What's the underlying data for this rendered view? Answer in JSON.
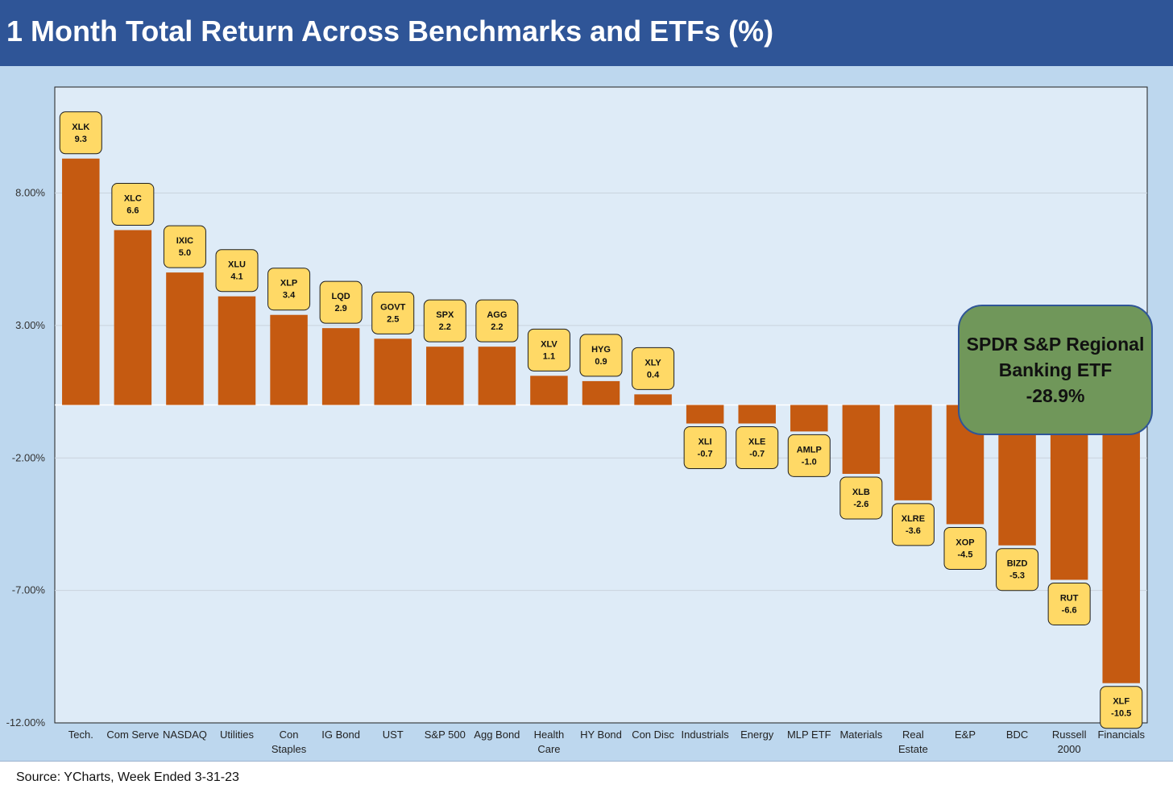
{
  "title": "1 Month Total Return Across Benchmarks and ETFs (%)",
  "source": "Source: YCharts, Week Ended 3-31-23",
  "callout": {
    "lines": [
      "SPDR S&P Regional",
      "Banking ETF",
      "-28.9%"
    ]
  },
  "colors": {
    "title_bg": "#2f5597",
    "panel_bg": "#bdd7ee",
    "plot_bg": "#deebf7",
    "bar": "#c55a11",
    "label_fill": "#ffd966",
    "callout_fill": "#70975a"
  },
  "chart_data": {
    "type": "bar",
    "ylim": [
      -12,
      12
    ],
    "yticks": [
      8,
      3,
      -2,
      -7,
      -12
    ],
    "ytick_labels": [
      "8.00%",
      "3.00%",
      "-2.00%",
      "-7.00%",
      "-12.00%"
    ],
    "grid": true,
    "categories": [
      [
        "Tech."
      ],
      [
        "Com Serve"
      ],
      [
        "NASDAQ"
      ],
      [
        "Utilities"
      ],
      [
        "Con",
        "Staples"
      ],
      [
        "IG Bond"
      ],
      [
        "UST"
      ],
      [
        "S&P 500"
      ],
      [
        "Agg Bond"
      ],
      [
        "Health",
        "Care"
      ],
      [
        "HY Bond"
      ],
      [
        "Con Disc"
      ],
      [
        "Industrials"
      ],
      [
        "Energy"
      ],
      [
        "MLP ETF"
      ],
      [
        "Materials"
      ],
      [
        "Real",
        "Estate"
      ],
      [
        "E&P"
      ],
      [
        "BDC"
      ],
      [
        "Russell",
        "2000"
      ],
      [
        "Financials"
      ]
    ],
    "tickers": [
      "XLK",
      "XLC",
      "IXIC",
      "XLU",
      "XLP",
      "LQD",
      "GOVT",
      "SPX",
      "AGG",
      "XLV",
      "HYG",
      "XLY",
      "XLI",
      "XLE",
      "AMLP",
      "XLB",
      "XLRE",
      "XOP",
      "BIZD",
      "RUT",
      "XLF"
    ],
    "values": [
      9.3,
      6.6,
      5.0,
      4.1,
      3.4,
      2.9,
      2.5,
      2.2,
      2.2,
      1.1,
      0.9,
      0.4,
      -0.7,
      -0.7,
      -1.0,
      -2.6,
      -3.6,
      -4.5,
      -5.3,
      -6.6,
      -10.5
    ],
    "value_labels": [
      "9.3",
      "6.6",
      "5.0",
      "4.1",
      "3.4",
      "2.9",
      "2.5",
      "2.2",
      "2.2",
      "1.1",
      "0.9",
      "0.4",
      "-0.7",
      "-0.7",
      "-1.0",
      "-2.6",
      "-3.6",
      "-4.5",
      "-5.3",
      "-6.6",
      "-10.5"
    ]
  }
}
